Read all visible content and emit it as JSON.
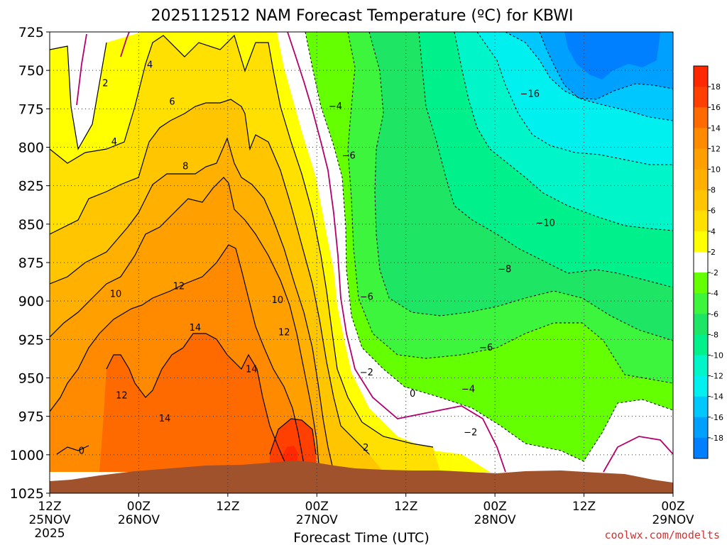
{
  "chart_data": {
    "type": "heatmap",
    "title": "2025112512 NAM Forecast Temperature (ºC) for KBWI",
    "xlabel": "Forecast Time (UTC)",
    "ylabel": "",
    "watermark": "coolwx.com/modelts",
    "x_ticks": [
      {
        "hours": 0,
        "line1": "12Z",
        "line2": "25NOV",
        "line3": "2025"
      },
      {
        "hours": 12,
        "line1": "00Z",
        "line2": "26NOV",
        "line3": ""
      },
      {
        "hours": 24,
        "line1": "12Z",
        "line2": "",
        "line3": ""
      },
      {
        "hours": 36,
        "line1": "00Z",
        "line2": "27NOV",
        "line3": ""
      },
      {
        "hours": 48,
        "line1": "12Z",
        "line2": "",
        "line3": ""
      },
      {
        "hours": 60,
        "line1": "00Z",
        "line2": "28NOV",
        "line3": ""
      },
      {
        "hours": 72,
        "line1": "12Z",
        "line2": "",
        "line3": ""
      },
      {
        "hours": 84,
        "line1": "00Z",
        "line2": "29NOV",
        "line3": ""
      }
    ],
    "x_range_hours": [
      0,
      84
    ],
    "y_ticks_hpa": [
      725,
      750,
      775,
      800,
      825,
      850,
      875,
      900,
      925,
      950,
      975,
      1000,
      1025
    ],
    "y_range_hpa": [
      725,
      1025
    ],
    "colorbar": {
      "levels": [
        18,
        16,
        14,
        12,
        10,
        8,
        6,
        4,
        2,
        -2,
        -4,
        -6,
        -8,
        -10,
        -12,
        -14,
        -16,
        -18
      ],
      "bins": [
        {
          "range": ">18",
          "color": "#ff2800"
        },
        {
          "range": "16-18",
          "color": "#ff4000"
        },
        {
          "range": "14-16",
          "color": "#ff6a00"
        },
        {
          "range": "12-14",
          "color": "#ff8a00"
        },
        {
          "range": "10-12",
          "color": "#ffa000"
        },
        {
          "range": "8-10",
          "color": "#ffb000"
        },
        {
          "range": "6-8",
          "color": "#ffc600"
        },
        {
          "range": "4-6",
          "color": "#ffe000"
        },
        {
          "range": "2-4",
          "color": "#ffff00"
        },
        {
          "range": "-2-2",
          "color": "#ffffff"
        },
        {
          "range": "-4--2",
          "color": "#64ff00"
        },
        {
          "range": "-6--4",
          "color": "#3cf53c"
        },
        {
          "range": "-8--6",
          "color": "#1ee664"
        },
        {
          "range": "-10--8",
          "color": "#00f08c"
        },
        {
          "range": "-12--10",
          "color": "#00f5c8"
        },
        {
          "range": "-14--12",
          "color": "#00f0f0"
        },
        {
          "range": "-16--14",
          "color": "#00c8ff"
        },
        {
          "range": "-18--16",
          "color": "#00a0ff"
        },
        {
          "range": "<-18",
          "color": "#0080ff"
        }
      ]
    },
    "contour_labels": [
      {
        "text": "2",
        "hours": 7.5,
        "hpa": 758
      },
      {
        "text": "4",
        "hours": 13.5,
        "hpa": 746
      },
      {
        "text": "6",
        "hours": 16.5,
        "hpa": 770
      },
      {
        "text": "4",
        "hours": 8.7,
        "hpa": 796
      },
      {
        "text": "8",
        "hours": 18.3,
        "hpa": 812
      },
      {
        "text": "12",
        "hours": 17.4,
        "hpa": 890
      },
      {
        "text": "10",
        "hours": 8.9,
        "hpa": 895
      },
      {
        "text": "10",
        "hours": 30.7,
        "hpa": 899
      },
      {
        "text": "14",
        "hours": 19.6,
        "hpa": 917
      },
      {
        "text": "12",
        "hours": 31.6,
        "hpa": 920
      },
      {
        "text": "14",
        "hours": 27.2,
        "hpa": 944
      },
      {
        "text": "12",
        "hours": 9.7,
        "hpa": 961
      },
      {
        "text": "14",
        "hours": 15.5,
        "hpa": 976
      },
      {
        "text": "0",
        "hours": 4.3,
        "hpa": 997
      },
      {
        "text": "−4",
        "hours": 38.5,
        "hpa": 773
      },
      {
        "text": "−6",
        "hours": 40.3,
        "hpa": 805
      },
      {
        "text": "−10",
        "hours": 66.8,
        "hpa": 849
      },
      {
        "text": "−8",
        "hours": 61.3,
        "hpa": 879
      },
      {
        "text": "−6",
        "hours": 42.7,
        "hpa": 897
      },
      {
        "text": "−6",
        "hours": 58.8,
        "hpa": 930
      },
      {
        "text": "−2",
        "hours": 42.7,
        "hpa": 946
      },
      {
        "text": "−4",
        "hours": 56.4,
        "hpa": 957
      },
      {
        "text": "0",
        "hours": 48.9,
        "hpa": 960
      },
      {
        "text": "−2",
        "hours": 56.7,
        "hpa": 985
      },
      {
        "text": "2",
        "hours": 42.6,
        "hpa": 995
      },
      {
        "text": "−16",
        "hours": 64.7,
        "hpa": 765
      }
    ]
  }
}
